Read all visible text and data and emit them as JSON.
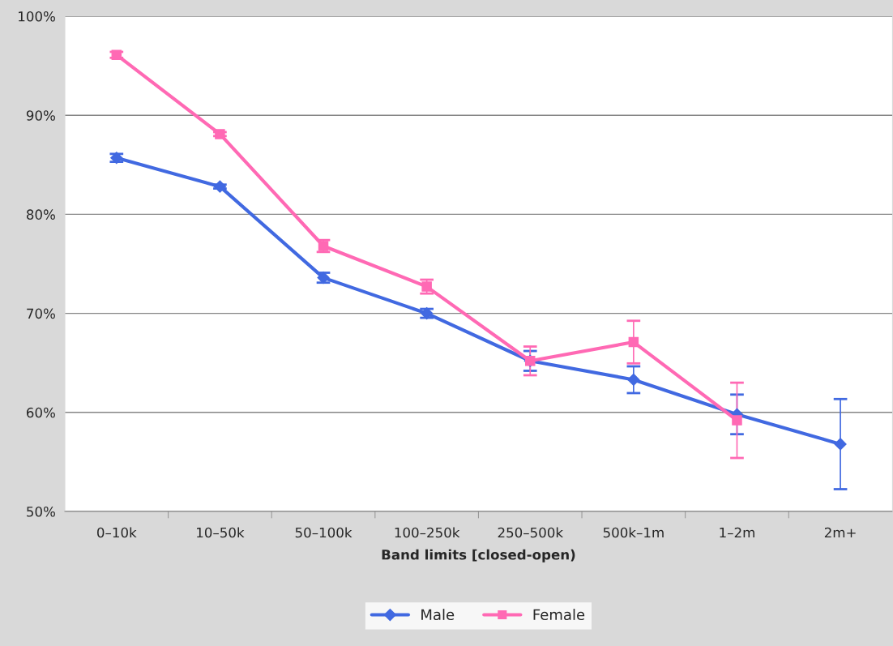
{
  "chart_data": {
    "type": "line",
    "xlabel": "Band limits [closed-open)",
    "categories": [
      "0–10k",
      "10–50k",
      "50–100k",
      "100–250k",
      "250–500k",
      "500k–1m",
      "1–2m",
      "2m+"
    ],
    "series": [
      {
        "name": "Male",
        "color": "#4169e1",
        "marker": "diamond",
        "values": [
          85.7,
          82.8,
          73.6,
          70.0,
          65.2,
          63.3,
          59.8,
          56.8
        ],
        "errors": [
          0.4,
          0.2,
          0.5,
          0.45,
          1.0,
          1.35,
          2.0,
          4.55
        ]
      },
      {
        "name": "Female",
        "color": "#ff69b4",
        "marker": "square",
        "values": [
          96.1,
          88.1,
          76.8,
          72.7,
          65.2,
          67.1,
          59.2,
          null
        ],
        "errors": [
          0.3,
          0.2,
          0.6,
          0.7,
          1.45,
          2.15,
          3.8,
          null
        ]
      }
    ],
    "ylim": [
      50,
      100
    ],
    "yticks": [
      {
        "value": 50,
        "label": "50%"
      },
      {
        "value": 60,
        "label": "60%"
      },
      {
        "value": 70,
        "label": "70%"
      },
      {
        "value": 80,
        "label": "80%"
      },
      {
        "value": 90,
        "label": "90%"
      },
      {
        "value": 100,
        "label": "100%"
      }
    ],
    "grid": "y",
    "legend": "bottom",
    "line_style": "solid"
  }
}
